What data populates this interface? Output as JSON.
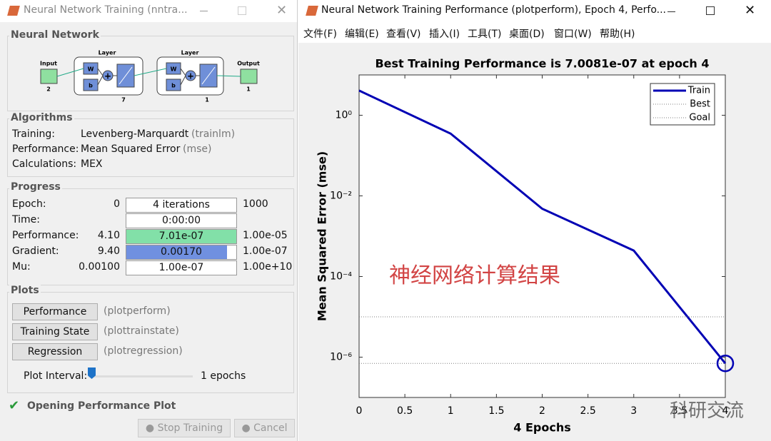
{
  "left_window": {
    "title": "Neural Network Training (nntra...",
    "network": {
      "heading": "Neural Network",
      "input": "Input",
      "input_size": "2",
      "layer": "Layer",
      "weight": "W",
      "bias": "b",
      "layer1_size": "7",
      "layer2_size": "1",
      "output": "Output",
      "output_size": "1"
    },
    "algorithms": {
      "heading": "Algorithms",
      "rows": [
        {
          "label": "Training:",
          "value": "Levenberg-Marquardt",
          "fn": "(trainlm)"
        },
        {
          "label": "Performance:",
          "value": "Mean Squared Error",
          "fn": "(mse)"
        },
        {
          "label": "Calculations:",
          "value": "MEX"
        }
      ]
    },
    "progress": {
      "heading": "Progress",
      "rows": [
        {
          "label": "Epoch:",
          "start": "0",
          "current": "4 iterations",
          "end": "1000"
        },
        {
          "label": "Time:",
          "current": "0:00:00"
        },
        {
          "label": "Performance:",
          "start": "4.10",
          "current": "7.01e-07",
          "end": "1.00e-05"
        },
        {
          "label": "Gradient:",
          "start": "9.40",
          "current": "0.00170",
          "end": "1.00e-07"
        },
        {
          "label": "Mu:",
          "start": "0.00100",
          "current": "1.00e-07",
          "end": "1.00e+10"
        }
      ]
    },
    "plots": {
      "heading": "Plots",
      "buttons": [
        {
          "label": "Performance",
          "fn": "(plotperform)"
        },
        {
          "label": "Training State",
          "fn": "(plottrainstate)"
        },
        {
          "label": "Regression",
          "fn": "(plotregression)"
        }
      ],
      "interval_label": "Plot Interval:",
      "interval_value": "1 epochs"
    },
    "status": "Opening Performance Plot",
    "buttons": [
      "Stop Training",
      "Cancel"
    ]
  },
  "right_window": {
    "title": "Neural Network Training Performance (plotperform), Epoch 4, Perfo...",
    "menu": [
      "文件(F)",
      "编辑(E)",
      "查看(V)",
      "插入(I)",
      "工具(T)",
      "桌面(D)",
      "窗口(W)",
      "帮助(H)"
    ]
  },
  "chart_data": {
    "type": "line",
    "title": "Best Training Performance is 7.0081e-07 at epoch 4",
    "x_label": "4 Epochs",
    "y_label": "Mean Squared Error  (mse)",
    "x": [
      0,
      1,
      2,
      3,
      4
    ],
    "series": [
      {
        "name": "Train",
        "color": "#0000b4",
        "style": "solid",
        "values": [
          4.1,
          0.35,
          0.0048,
          0.00044,
          7.0081e-07
        ]
      },
      {
        "name": "Best",
        "color": "#7f7f7f",
        "style": "dotted",
        "values": [
          7.0081e-07,
          7.0081e-07,
          7.0081e-07,
          7.0081e-07,
          7.0081e-07
        ]
      },
      {
        "name": "Goal",
        "color": "#7f7f7f",
        "style": "dotted",
        "values": [
          1e-05,
          1e-05,
          1e-05,
          1e-05,
          1e-05
        ]
      }
    ],
    "xlim": [
      0,
      4
    ],
    "xticks": [
      0,
      0.5,
      1,
      1.5,
      2,
      2.5,
      3,
      3.5,
      4
    ],
    "ylim": [
      1e-07,
      10
    ],
    "log_y": true,
    "yticks": [
      {
        "value": 1e-06,
        "label": "10⁻⁶"
      },
      {
        "value": 0.0001,
        "label": "10⁻⁴"
      },
      {
        "value": 0.01,
        "label": "10⁻²"
      },
      {
        "value": 1,
        "label": "10⁰"
      }
    ],
    "legend": "upper right",
    "annotation": "神经网络计算结果"
  },
  "watermark": "科研交流"
}
